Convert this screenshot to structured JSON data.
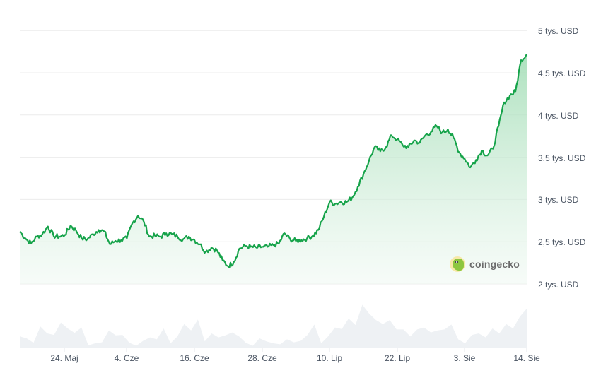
{
  "chart_data": {
    "type": "area",
    "title": "",
    "xlabel": "",
    "ylabel": "",
    "currency": "USD",
    "ylim": [
      2000,
      5000
    ],
    "grid": true,
    "legend": "none",
    "y_ticks": [
      {
        "value": 5000,
        "label": "5 tys. USD"
      },
      {
        "value": 4500,
        "label": "4,5 tys. USD"
      },
      {
        "value": 4000,
        "label": "4 tys. USD"
      },
      {
        "value": 3500,
        "label": "3,5 tys. USD"
      },
      {
        "value": 3000,
        "label": "3 tys. USD"
      },
      {
        "value": 2500,
        "label": "2,5 tys. USD"
      },
      {
        "value": 2000,
        "label": "2 tys. USD"
      }
    ],
    "x_ticks": [
      "24. Maj",
      "4. Cze",
      "16. Cze",
      "28. Cze",
      "10. Lip",
      "22. Lip",
      "3. Sie",
      "14. Sie"
    ],
    "series": [
      {
        "name": "Price",
        "color": "#16a34a",
        "points": [
          [
            "16. Maj",
            2620
          ],
          [
            "17. Maj",
            2540
          ],
          [
            "18. Maj",
            2480
          ],
          [
            "19. Maj",
            2560
          ],
          [
            "20. Maj",
            2590
          ],
          [
            "21. Maj",
            2680
          ],
          [
            "22. Maj",
            2570
          ],
          [
            "23. Maj",
            2560
          ],
          [
            "24. Maj",
            2580
          ],
          [
            "25. Maj",
            2690
          ],
          [
            "26. Maj",
            2630
          ],
          [
            "27. Maj",
            2540
          ],
          [
            "28. Maj",
            2530
          ],
          [
            "29. Maj",
            2590
          ],
          [
            "30. Maj",
            2640
          ],
          [
            "31. Maj",
            2620
          ],
          [
            "1. Cze",
            2470
          ],
          [
            "2. Cze",
            2510
          ],
          [
            "3. Cze",
            2520
          ],
          [
            "4. Cze",
            2540
          ],
          [
            "5. Cze",
            2720
          ],
          [
            "6. Cze",
            2810
          ],
          [
            "7. Cze",
            2740
          ],
          [
            "8. Cze",
            2560
          ],
          [
            "9. Cze",
            2570
          ],
          [
            "10. Cze",
            2560
          ],
          [
            "11. Cze",
            2600
          ],
          [
            "12. Cze",
            2590
          ],
          [
            "13. Cze",
            2560
          ],
          [
            "14. Cze",
            2530
          ],
          [
            "15. Cze",
            2560
          ],
          [
            "16. Cze",
            2520
          ],
          [
            "17. Cze",
            2470
          ],
          [
            "18. Cze",
            2380
          ],
          [
            "19. Cze",
            2430
          ],
          [
            "20. Cze",
            2400
          ],
          [
            "21. Cze",
            2280
          ],
          [
            "22. Cze",
            2210
          ],
          [
            "23. Cze",
            2260
          ],
          [
            "24. Cze",
            2420
          ],
          [
            "25. Cze",
            2450
          ],
          [
            "26. Cze",
            2440
          ],
          [
            "27. Cze",
            2430
          ],
          [
            "28. Cze",
            2440
          ],
          [
            "29. Cze",
            2440
          ],
          [
            "30. Cze",
            2460
          ],
          [
            "1. Lip",
            2480
          ],
          [
            "2. Lip",
            2600
          ],
          [
            "3. Lip",
            2530
          ],
          [
            "4. Lip",
            2510
          ],
          [
            "5. Lip",
            2520
          ],
          [
            "6. Lip",
            2540
          ],
          [
            "7. Lip",
            2570
          ],
          [
            "8. Lip",
            2640
          ],
          [
            "9. Lip",
            2800
          ],
          [
            "10. Lip",
            2970
          ],
          [
            "11. Lip",
            2950
          ],
          [
            "12. Lip",
            2970
          ],
          [
            "13. Lip",
            2970
          ],
          [
            "14. Lip",
            3020
          ],
          [
            "15. Lip",
            3150
          ],
          [
            "16. Lip",
            3300
          ],
          [
            "17. Lip",
            3460
          ],
          [
            "18. Lip",
            3620
          ],
          [
            "19. Lip",
            3570
          ],
          [
            "20. Lip",
            3620
          ],
          [
            "21. Lip",
            3760
          ],
          [
            "22. Lip",
            3710
          ],
          [
            "23. Lip",
            3640
          ],
          [
            "24. Lip",
            3620
          ],
          [
            "25. Lip",
            3700
          ],
          [
            "26. Lip",
            3670
          ],
          [
            "27. Lip",
            3760
          ],
          [
            "28. Lip",
            3800
          ],
          [
            "29. Lip",
            3870
          ],
          [
            "30. Lip",
            3790
          ],
          [
            "31. Lip",
            3830
          ],
          [
            "1. Sie",
            3730
          ],
          [
            "2. Sie",
            3560
          ],
          [
            "3. Sie",
            3480
          ],
          [
            "4. Sie",
            3380
          ],
          [
            "5. Sie",
            3470
          ],
          [
            "6. Sie",
            3580
          ],
          [
            "7. Sie",
            3520
          ],
          [
            "8. Sie",
            3600
          ],
          [
            "9. Sie",
            3870
          ],
          [
            "10. Sie",
            4150
          ],
          [
            "11. Sie",
            4230
          ],
          [
            "12. Sie",
            4280
          ],
          [
            "13. Sie",
            4650
          ],
          [
            "14. Sie",
            4720
          ]
        ]
      },
      {
        "name": "Volume",
        "color": "#eef1f4",
        "relative_heights": [
          0.24,
          0.2,
          0.11,
          0.44,
          0.3,
          0.27,
          0.52,
          0.4,
          0.31,
          0.42,
          0.06,
          0.1,
          0.12,
          0.36,
          0.26,
          0.27,
          0.11,
          0.05,
          0.15,
          0.22,
          0.18,
          0.4,
          0.1,
          0.24,
          0.49,
          0.36,
          0.58,
          0.14,
          0.3,
          0.22,
          0.26,
          0.32,
          0.24,
          0.11,
          0.05,
          0.2,
          0.14,
          0.1,
          0.08,
          0.18,
          0.12,
          0.15,
          0.27,
          0.48,
          0.1,
          0.24,
          0.42,
          0.39,
          0.6,
          0.47,
          0.88,
          0.7,
          0.57,
          0.49,
          0.57,
          0.38,
          0.38,
          0.24,
          0.38,
          0.42,
          0.32,
          0.36,
          0.38,
          0.48,
          0.18,
          0.1,
          0.27,
          0.3,
          0.22,
          0.4,
          0.3,
          0.49,
          0.4,
          0.64,
          0.8
        ]
      }
    ],
    "watermark": "coingecko"
  },
  "watermark": {
    "text": "coingecko",
    "icon": "coingecko-gecko-logo-icon"
  },
  "colors": {
    "line": "#16a34a",
    "area_top": "#bfe8cc",
    "area_bottom": "#f4fbf6",
    "volume": "#eef1f4",
    "grid": "#ececec",
    "axis_text": "#4b5563"
  }
}
